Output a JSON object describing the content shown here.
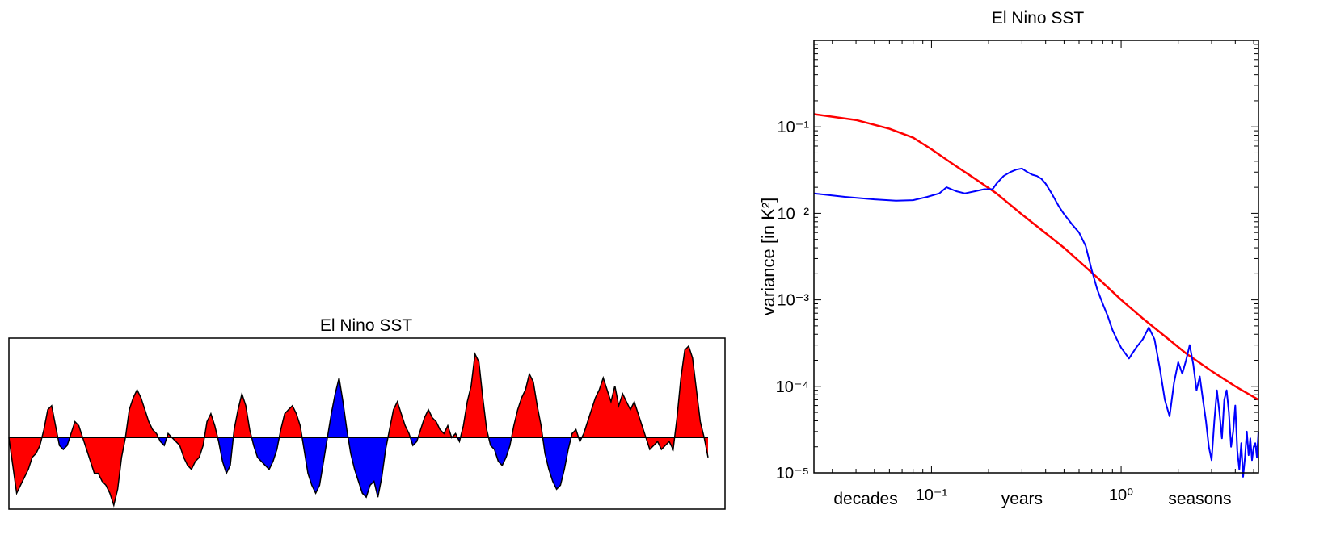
{
  "chart_data": [
    {
      "type": "area",
      "title": "El Nino SST",
      "colors": {
        "positive": "#ff0000",
        "negative": "#0000ff",
        "line": "#000000"
      },
      "baseline": 0,
      "ylim": [
        -1.8,
        2.5
      ],
      "values": [
        0.0,
        -0.7,
        -1.4,
        -1.2,
        -1.0,
        -0.8,
        -0.5,
        -0.4,
        -0.2,
        0.2,
        0.7,
        0.8,
        0.3,
        -0.2,
        -0.3,
        -0.2,
        0.1,
        0.4,
        0.3,
        0.0,
        -0.3,
        -0.6,
        -0.9,
        -0.9,
        -1.1,
        -1.2,
        -1.4,
        -1.7,
        -1.3,
        -0.5,
        0.0,
        0.7,
        1.0,
        1.2,
        1.0,
        0.7,
        0.4,
        0.2,
        0.1,
        -0.1,
        -0.2,
        0.1,
        0.0,
        -0.1,
        -0.2,
        -0.5,
        -0.7,
        -0.8,
        -0.6,
        -0.5,
        -0.2,
        0.4,
        0.6,
        0.3,
        -0.1,
        -0.6,
        -0.9,
        -0.7,
        0.2,
        0.7,
        1.1,
        0.8,
        0.2,
        -0.2,
        -0.5,
        -0.6,
        -0.7,
        -0.8,
        -0.6,
        -0.3,
        0.2,
        0.6,
        0.7,
        0.8,
        0.6,
        0.3,
        -0.3,
        -0.9,
        -1.2,
        -1.4,
        -1.2,
        -0.6,
        0.0,
        0.6,
        1.1,
        1.5,
        0.9,
        0.2,
        -0.4,
        -0.8,
        -1.1,
        -1.4,
        -1.5,
        -1.2,
        -1.1,
        -1.5,
        -1.0,
        -0.3,
        0.2,
        0.7,
        0.9,
        0.6,
        0.3,
        0.1,
        -0.2,
        -0.1,
        0.2,
        0.5,
        0.7,
        0.5,
        0.4,
        0.2,
        0.1,
        0.3,
        0.0,
        0.1,
        -0.1,
        0.3,
        0.9,
        1.3,
        2.1,
        1.9,
        1.0,
        0.2,
        -0.2,
        -0.3,
        -0.6,
        -0.7,
        -0.5,
        -0.2,
        0.3,
        0.7,
        1.0,
        1.2,
        1.6,
        1.4,
        0.8,
        0.3,
        -0.4,
        -0.8,
        -1.1,
        -1.3,
        -1.2,
        -0.8,
        -0.3,
        0.1,
        0.2,
        -0.1,
        0.1,
        0.4,
        0.7,
        1.0,
        1.2,
        1.5,
        1.2,
        0.9,
        1.3,
        0.8,
        1.1,
        0.9,
        0.7,
        0.9,
        0.6,
        0.3,
        0.0,
        -0.3,
        -0.2,
        -0.1,
        -0.3,
        -0.2,
        -0.1,
        -0.3,
        0.5,
        1.5,
        2.2,
        2.3,
        2.0,
        1.2,
        0.4,
        0.0,
        -0.5
      ]
    },
    {
      "type": "line",
      "title": "El Nino SST",
      "xlabel": "",
      "ylabel": "variance [in K²]",
      "xscale": "log",
      "yscale": "log",
      "xlim": [
        0.024,
        5.3
      ],
      "ylim": [
        1e-05,
        1
      ],
      "x_ticks": [
        0.1,
        1
      ],
      "x_tick_labels": [
        "10⁻¹",
        "10⁰"
      ],
      "y_ticks": [
        1e-05,
        0.0001,
        0.001,
        0.01,
        0.1
      ],
      "y_tick_labels": [
        "10⁻⁵",
        "10⁻⁴",
        "10⁻³",
        "10⁻²",
        "10⁻¹"
      ],
      "x_annotations": [
        {
          "x": 0.045,
          "text": "decades"
        },
        {
          "x": 0.3,
          "text": "years"
        },
        {
          "x": 2.6,
          "text": "seasons"
        }
      ],
      "series": [
        {
          "color": "#ff0000",
          "x": [
            0.024,
            0.04,
            0.06,
            0.08,
            0.1,
            0.13,
            0.17,
            0.22,
            0.3,
            0.4,
            0.5,
            0.6,
            0.75,
            1.0,
            1.3,
            1.7,
            2.2,
            3.0,
            4.0,
            5.3
          ],
          "y": [
            0.14,
            0.12,
            0.095,
            0.075,
            0.055,
            0.037,
            0.025,
            0.017,
            0.0097,
            0.0059,
            0.004,
            0.0028,
            0.0018,
            0.001,
            0.00061,
            0.00038,
            0.00024,
            0.00015,
            0.0001,
            7e-05
          ]
        },
        {
          "color": "#0000ff",
          "x": [
            0.024,
            0.035,
            0.05,
            0.065,
            0.08,
            0.095,
            0.11,
            0.12,
            0.135,
            0.15,
            0.17,
            0.19,
            0.21,
            0.22,
            0.24,
            0.26,
            0.28,
            0.3,
            0.32,
            0.34,
            0.36,
            0.38,
            0.4,
            0.43,
            0.47,
            0.5,
            0.55,
            0.6,
            0.65,
            0.7,
            0.75,
            0.8,
            0.85,
            0.9,
            0.95,
            1.0,
            1.1,
            1.2,
            1.3,
            1.4,
            1.5,
            1.6,
            1.7,
            1.8,
            1.9,
            2.0,
            2.1,
            2.2,
            2.3,
            2.4,
            2.5,
            2.6,
            2.7,
            2.8,
            2.9,
            3.0,
            3.1,
            3.2,
            3.3,
            3.4,
            3.5,
            3.6,
            3.7,
            3.8,
            3.9,
            4.0,
            4.1,
            4.2,
            4.3,
            4.4,
            4.5,
            4.6,
            4.7,
            4.8,
            4.9,
            5.0,
            5.1,
            5.2,
            5.3
          ],
          "y": [
            0.017,
            0.0155,
            0.0145,
            0.014,
            0.0142,
            0.0155,
            0.017,
            0.02,
            0.018,
            0.017,
            0.018,
            0.019,
            0.019,
            0.022,
            0.027,
            0.03,
            0.032,
            0.033,
            0.03,
            0.028,
            0.027,
            0.025,
            0.022,
            0.017,
            0.012,
            0.0098,
            0.0075,
            0.006,
            0.0042,
            0.0022,
            0.0013,
            0.0009,
            0.00065,
            0.00045,
            0.00035,
            0.00028,
            0.00021,
            0.00028,
            0.00035,
            0.00048,
            0.00035,
            0.00016,
            7e-05,
            4.5e-05,
            0.00011,
            0.00019,
            0.00014,
            0.0002,
            0.0003,
            0.00018,
            9e-05,
            0.00013,
            7e-05,
            4e-05,
            2e-05,
            1.4e-05,
            4e-05,
            9e-05,
            5e-05,
            2.5e-05,
            7e-05,
            9e-05,
            5e-05,
            2e-05,
            3e-05,
            6e-05,
            1.8e-05,
            1.1e-05,
            2.2e-05,
            9e-06,
            1.5e-05,
            3e-05,
            1.6e-05,
            2.5e-05,
            1.4e-05,
            2e-05,
            2.2e-05,
            1.5e-05,
            3e-05
          ]
        }
      ]
    }
  ]
}
